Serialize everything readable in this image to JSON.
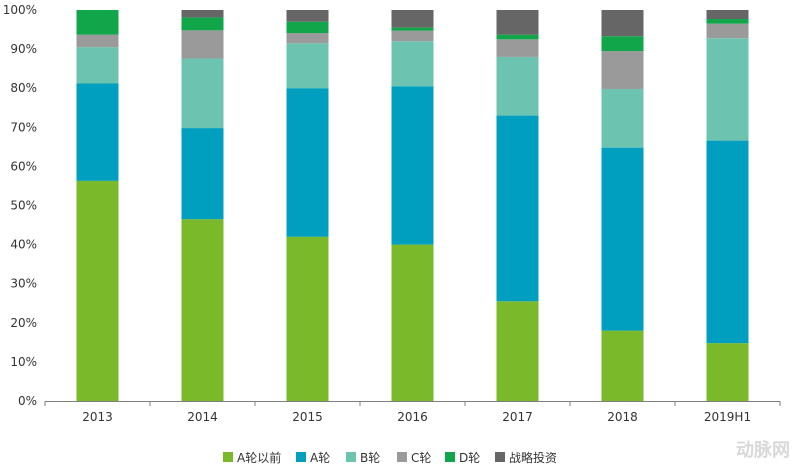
{
  "chart_data": {
    "type": "bar",
    "stacked": true,
    "categories": [
      "2013",
      "2014",
      "2015",
      "2016",
      "2017",
      "2018",
      "2019H1"
    ],
    "ylim": [
      0,
      100
    ],
    "y_ticks": [
      "0%",
      "10%",
      "20%",
      "30%",
      "40%",
      "50%",
      "60%",
      "70%",
      "80%",
      "90%",
      "100%"
    ],
    "grid": false,
    "legend_position": "bottom",
    "series": [
      {
        "name": "A轮以前",
        "color": "#7ab929",
        "values": [
          56.3,
          46.5,
          42.0,
          40.0,
          25.5,
          18.0,
          14.8
        ]
      },
      {
        "name": "A轮",
        "color": "#009ebf",
        "values": [
          24.9,
          23.3,
          38.0,
          40.5,
          47.5,
          46.8,
          51.8
        ]
      },
      {
        "name": "B轮",
        "color": "#6cc4b0",
        "values": [
          9.3,
          17.8,
          11.5,
          11.5,
          15.0,
          15.0,
          26.2
        ]
      },
      {
        "name": "C轮",
        "color": "#9a9a9a",
        "values": [
          3.2,
          7.2,
          2.6,
          2.7,
          4.5,
          9.7,
          3.7
        ]
      },
      {
        "name": "D轮",
        "color": "#12a64b",
        "values": [
          6.3,
          3.3,
          2.9,
          0.8,
          1.2,
          3.8,
          1.2
        ]
      },
      {
        "name": "战略投资",
        "color": "#666666",
        "values": [
          0.0,
          1.9,
          3.0,
          4.5,
          6.3,
          6.7,
          2.3
        ]
      }
    ]
  },
  "watermark": "动脉网"
}
